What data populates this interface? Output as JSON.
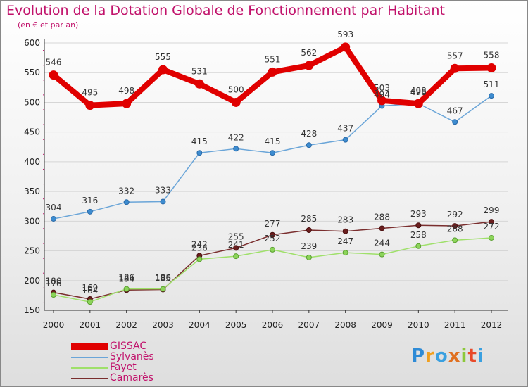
{
  "title": "Evolution de la Dotation Globale de Fonctionnement par Habitant",
  "subtitle": "(en € et par an)",
  "logo": {
    "text": "Proxiti"
  },
  "colors": {
    "GISSAC": "#e00000",
    "Sylvanès": "#6aa5d8",
    "Fayet": "#9fe06a",
    "Camarès": "#7a2e2e"
  },
  "chart_data": {
    "type": "line",
    "title": "Evolution de la Dotation Globale de Fonctionnement par Habitant",
    "subtitle": "(en € et par an)",
    "x": [
      "2000",
      "2001",
      "2002",
      "2003",
      "2004",
      "2005",
      "2006",
      "2007",
      "2008",
      "2009",
      "2010",
      "2011",
      "2012"
    ],
    "ylim": [
      150,
      600
    ],
    "yticks": [
      "150",
      "200",
      "250",
      "300",
      "350",
      "400",
      "450",
      "500",
      "550",
      "600"
    ],
    "grid": true,
    "legend_position": "bottom-left",
    "series": [
      {
        "name": "GISSAC",
        "values": [
          546,
          495,
          498,
          555,
          531,
          500,
          551,
          562,
          593,
          503,
          498,
          557,
          558
        ],
        "labels": [
          "546",
          "495",
          "498",
          "555",
          "531",
          "500",
          "551",
          "562",
          "593",
          "503",
          "498",
          "557",
          "558"
        ]
      },
      {
        "name": "Sylvanès",
        "values": [
          304,
          316,
          332,
          333,
          415,
          422,
          415,
          428,
          437,
          494,
          498,
          467,
          511
        ],
        "labels": [
          "304",
          "316",
          "332",
          "333",
          "415",
          "422",
          "415",
          "428",
          "437",
          "494",
          "498",
          "467",
          "511"
        ]
      },
      {
        "name": "Fayet",
        "values": [
          176,
          164,
          186,
          186,
          236,
          241,
          252,
          239,
          247,
          244,
          258,
          268,
          272
        ],
        "labels": [
          "176",
          "164",
          "186",
          "186",
          "236",
          "241",
          "252",
          "239",
          "247",
          "244",
          "258",
          "268",
          "272"
        ]
      },
      {
        "name": "Camarès",
        "values": [
          180,
          169,
          184,
          185,
          242,
          255,
          277,
          285,
          283,
          288,
          293,
          292,
          299
        ],
        "labels": [
          "180",
          "169",
          "184",
          "185",
          "242",
          "255",
          "277",
          "285",
          "283",
          "288",
          "293",
          "292",
          "299"
        ]
      }
    ]
  }
}
